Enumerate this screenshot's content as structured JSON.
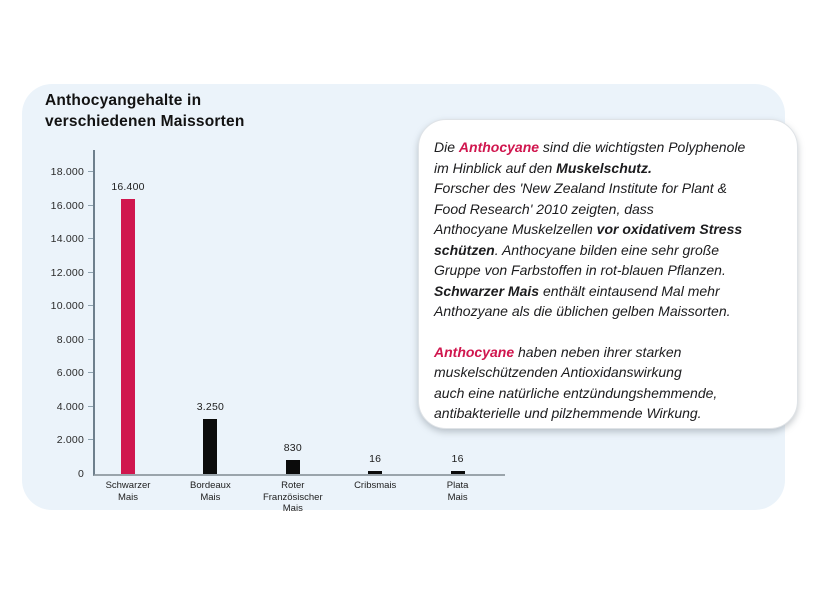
{
  "colors": {
    "accent_pink": "#D0164E",
    "bar_black": "#0B0B0B",
    "panel_bg": "#EBF3FA",
    "text": "#1c1c1e"
  },
  "chart": {
    "title": "Anthocyangehalte in\nverschiedenen Maissorten"
  },
  "chart_data": {
    "type": "bar",
    "title": "Anthocyangehalte in verschiedenen Maissorten",
    "categories": [
      "Schwarzer Mais",
      "Bordeaux Mais",
      "Roter Französischer Mais",
      "Cribsmais",
      "Plata Mais"
    ],
    "category_display": [
      "Schwarzer\nMais",
      "Bordeaux\nMais",
      "Roter\nFranzösischer\nMais",
      "Cribsmais",
      "Plata\nMais"
    ],
    "values": [
      16400,
      3250,
      830,
      16,
      16
    ],
    "value_labels": [
      "16.400",
      "3.250",
      "830",
      "16",
      "16"
    ],
    "bar_colors": [
      "#D0164E",
      "#0B0B0B",
      "#0B0B0B",
      "#0B0B0B",
      "#0B0B0B"
    ],
    "xlabel": "",
    "ylabel": "",
    "ylim": [
      0,
      19300
    ],
    "yticks": [
      0,
      2000,
      4000,
      6000,
      8000,
      10000,
      12000,
      14000,
      16000,
      18000
    ],
    "ytick_labels": [
      "0",
      "2.000",
      "4.000",
      "6.000",
      "8.000",
      "10.000",
      "12.000",
      "14.000",
      "16.000",
      "18.000"
    ],
    "grid": false,
    "legend": false
  },
  "infobox": {
    "paragraphs": [
      {
        "segments": [
          {
            "t": "Die "
          },
          {
            "t": "Anthocyane",
            "b": true,
            "pink": true
          },
          {
            "t": " sind die wichtigsten Polyphenole\nim Hinblick auf den "
          },
          {
            "t": "Muskelschutz.",
            "b": true
          },
          {
            "t": "\nForscher des 'New Zealand Institute for Plant &\nFood Research' 2010 zeigten, dass\nAnthocyane Muskelzellen "
          },
          {
            "t": "vor oxidativem Stress\nschützen",
            "b": true
          },
          {
            "t": ".  Anthocyane bilden eine sehr große\nGruppe von Farbstoffen in rot-blauen Pflanzen.\n"
          },
          {
            "t": "Schwarzer Mais",
            "b": true
          },
          {
            "t": "  enthält eintausend Mal mehr\nAnthozyane als die üblichen gelben Maissorten."
          }
        ]
      },
      {
        "segments": [
          {
            "t": "Anthocyane",
            "b": true,
            "pink": true
          },
          {
            "t": " haben neben ihrer starken\nmuskelschützenden Antioxidanswirkung\nauch eine natürliche entzündungshemmende,\nantibakterielle und pilzhemmende Wirkung."
          }
        ]
      }
    ]
  }
}
